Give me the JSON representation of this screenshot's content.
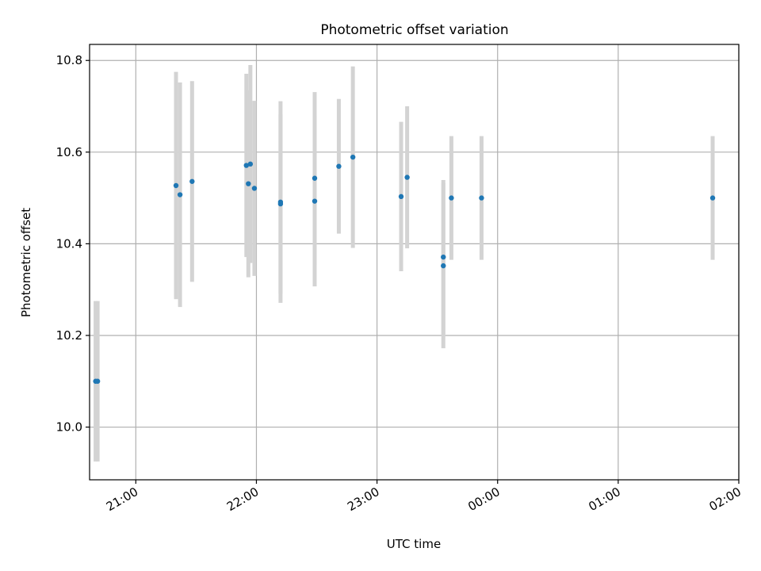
{
  "chart_data": {
    "type": "scatter",
    "title": "Photometric offset variation",
    "xlabel": "UTC time",
    "ylabel": "Photometric offset",
    "xlim": [
      "20:37",
      "02:00"
    ],
    "ylim": [
      9.885,
      10.835
    ],
    "grid": true,
    "x_ticks": [
      "21:00",
      "22:00",
      "23:00",
      "00:00",
      "01:00",
      "02:00"
    ],
    "y_ticks": [
      "10.0",
      "10.2",
      "10.4",
      "10.6",
      "10.8"
    ],
    "marker_color": "#1f77b4",
    "errorbar_color": "#d3d3d3",
    "points": [
      {
        "x": "20:40",
        "y": 10.1,
        "err": 0.175
      },
      {
        "x": "20:41",
        "y": 10.1,
        "err": 0.175
      },
      {
        "x": "21:20",
        "y": 10.527,
        "err": 0.248
      },
      {
        "x": "21:22",
        "y": 10.507,
        "err": 0.245
      },
      {
        "x": "21:28",
        "y": 10.536,
        "err": 0.219
      },
      {
        "x": "21:55",
        "y": 10.571,
        "err": 0.2
      },
      {
        "x": "21:56",
        "y": 10.531,
        "err": 0.204
      },
      {
        "x": "21:57",
        "y": 10.574,
        "err": 0.216
      },
      {
        "x": "21:59",
        "y": 10.521,
        "err": 0.191
      },
      {
        "x": "22:12",
        "y": 10.491,
        "err": 0.22
      },
      {
        "x": "22:12",
        "y": 10.487,
        "err": 0.196
      },
      {
        "x": "22:29",
        "y": 10.543,
        "err": 0.188
      },
      {
        "x": "22:29",
        "y": 10.493,
        "err": 0.186
      },
      {
        "x": "22:41",
        "y": 10.569,
        "err": 0.147
      },
      {
        "x": "22:48",
        "y": 10.589,
        "err": 0.198
      },
      {
        "x": "23:12",
        "y": 10.503,
        "err": 0.163
      },
      {
        "x": "23:15",
        "y": 10.545,
        "err": 0.155
      },
      {
        "x": "23:33",
        "y": 10.371,
        "err": 0.168
      },
      {
        "x": "23:33",
        "y": 10.352,
        "err": 0.18
      },
      {
        "x": "23:37",
        "y": 10.5,
        "err": 0.135
      },
      {
        "x": "23:52",
        "y": 10.5,
        "err": 0.135
      },
      {
        "x": "01:47",
        "y": 10.5,
        "err": 0.135
      }
    ]
  }
}
